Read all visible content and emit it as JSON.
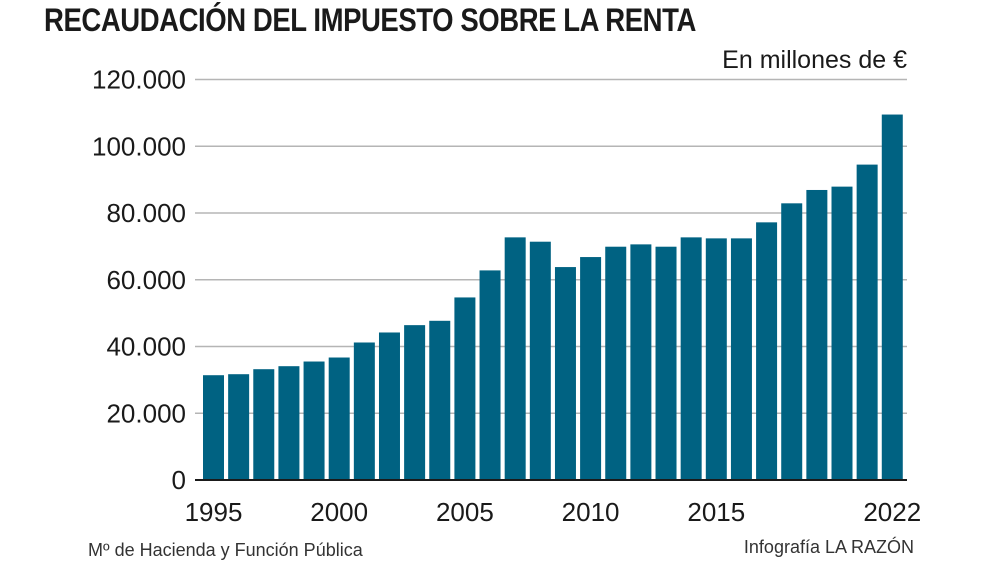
{
  "header": {
    "title": "RECAUDACIÓN DEL IMPUESTO SOBRE LA RENTA",
    "unit_label": "En millones de €"
  },
  "footer": {
    "source": "Mº de Hacienda y Función Pública",
    "credit": "Infografía LA RAZÓN"
  },
  "colors": {
    "bar": "#006282",
    "grid": "#b5b5b5",
    "axis": "#1a1a1a",
    "text": "#1a1a1a"
  },
  "chart_data": {
    "type": "bar",
    "title": "RECAUDACIÓN DEL IMPUESTO SOBRE LA RENTA",
    "subtitle": "En millones de €",
    "xlabel": "",
    "ylabel": "",
    "ylim": [
      0,
      120000
    ],
    "grid": true,
    "legend": "none",
    "yticks": [
      0,
      20000,
      40000,
      60000,
      80000,
      100000,
      120000
    ],
    "ytick_labels": [
      "0",
      "20.000",
      "40.000",
      "60.000",
      "80.000",
      "100.000",
      "120.000"
    ],
    "xtick_labels": [
      {
        "category": "1995",
        "label": "1995"
      },
      {
        "category": "2000",
        "label": "2000"
      },
      {
        "category": "2005",
        "label": "2005"
      },
      {
        "category": "2010",
        "label": "2010"
      },
      {
        "category": "2015",
        "label": "2015"
      },
      {
        "category": "2022",
        "label": "2022"
      }
    ],
    "categories": [
      "1995",
      "1996",
      "1997",
      "1998",
      "1999",
      "2000",
      "2001",
      "2002",
      "2003",
      "2004",
      "2005",
      "2006",
      "2007",
      "2008",
      "2009",
      "2010",
      "2011",
      "2012",
      "2013",
      "2014",
      "2015",
      "2016",
      "2017",
      "2018",
      "2019",
      "2020",
      "2021",
      "2022"
    ],
    "values": [
      31400,
      31700,
      33200,
      34100,
      35500,
      36700,
      41200,
      44200,
      46400,
      47700,
      54700,
      62800,
      72700,
      71400,
      63800,
      66800,
      69900,
      70600,
      69900,
      72700,
      72400,
      72400,
      77200,
      82900,
      86900,
      87900,
      94500,
      109500
    ],
    "source": "Mº de Hacienda y Función Pública",
    "credit": "Infografía LA RAZÓN"
  }
}
